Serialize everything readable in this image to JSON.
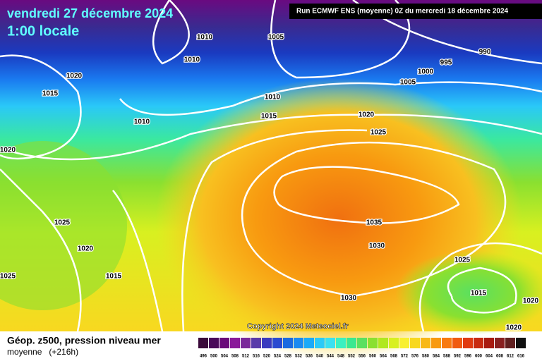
{
  "header": {
    "date": "vendredi 27 décembre 2024",
    "time": "1:00 locale",
    "run": "Run ECMWF ENS (moyenne) 0Z du mercredi 18 décembre 2024"
  },
  "isobar_labels": [
    1010,
    1010,
    1005,
    990,
    995,
    1000,
    1005,
    1020,
    1015,
    1010,
    1015,
    1020,
    1010,
    1025,
    1020,
    1035,
    1025,
    1030,
    1020,
    1025,
    1025,
    1015,
    1015,
    1030,
    1020,
    1020
  ],
  "copyright": "Copyright 2024 Meteociel.fr",
  "footer": {
    "title": "Géop. z500, pression niveau mer",
    "subtitle": "moyenne   (+216h)"
  },
  "scale": {
    "labels": [
      496,
      500,
      504,
      508,
      512,
      516,
      520,
      524,
      528,
      532,
      536,
      540,
      544,
      548,
      552,
      556,
      560,
      564,
      568,
      572,
      576,
      580,
      584,
      588,
      592,
      596,
      600,
      604,
      608,
      612,
      616
    ],
    "colors": [
      "#3a0a3a",
      "#4a0a5a",
      "#6a0a7a",
      "#8a1a9a",
      "#7a2a9a",
      "#5a3aaa",
      "#3a3abf",
      "#2a4ad0",
      "#1a6ae0",
      "#1a8af0",
      "#1aaaf8",
      "#2acaf8",
      "#3ae0f0",
      "#3af0c0",
      "#3ae890",
      "#5ae060",
      "#8ae030",
      "#b0e820",
      "#d8f020",
      "#f8f030",
      "#f8d820",
      "#f8b818",
      "#f89a10",
      "#f87a10",
      "#f05a10",
      "#e03a10",
      "#c82a10",
      "#a81a10",
      "#882020",
      "#602020",
      "#101010"
    ]
  }
}
